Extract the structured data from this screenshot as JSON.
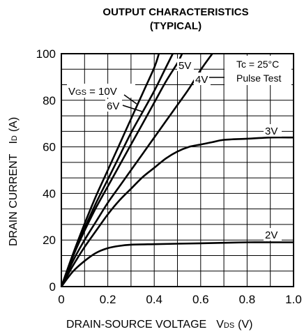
{
  "chart_data": {
    "type": "line",
    "title": "OUTPUT CHARACTERISTICS",
    "subtitle": "(TYPICAL)",
    "xlabel": "DRAIN-SOURCE VOLTAGE",
    "xlabel_symbol": "V",
    "xlabel_sub": "DS",
    "xlabel_unit": "(V)",
    "ylabel": "DRAIN CURRENT",
    "ylabel_symbol": "I",
    "ylabel_sub": "D",
    "ylabel_unit": "(A)",
    "xlim": [
      0,
      1.0
    ],
    "ylim": [
      0,
      100
    ],
    "x_ticks": [
      "0",
      "0.2",
      "0.4",
      "0.6",
      "0.8",
      "1.0"
    ],
    "y_ticks": [
      "0",
      "20",
      "40",
      "60",
      "80",
      "100"
    ],
    "grid": true,
    "annotations": {
      "condition_temp": "Tc = 25°C",
      "condition_test": "Pulse Test",
      "vgs_prefix": "V",
      "vgs_sub": "GS",
      "vgs_value": " = 10V"
    },
    "series": [
      {
        "name": "10V",
        "label": "V GS = 10V",
        "x": [
          0,
          0.05,
          0.1,
          0.15,
          0.2,
          0.25,
          0.3,
          0.35,
          0.4,
          0.42
        ],
        "y": [
          0,
          14,
          27,
          39,
          50,
          61,
          72,
          83,
          94,
          100
        ]
      },
      {
        "name": "6V",
        "label": "6V",
        "x": [
          0,
          0.05,
          0.1,
          0.15,
          0.2,
          0.25,
          0.3,
          0.35,
          0.4,
          0.45,
          0.48
        ],
        "y": [
          0,
          13,
          25,
          36,
          46,
          56,
          66,
          75,
          84,
          94,
          100
        ]
      },
      {
        "name": "5V",
        "label": "5V",
        "x": [
          0,
          0.05,
          0.1,
          0.15,
          0.2,
          0.25,
          0.3,
          0.35,
          0.4,
          0.45,
          0.5,
          0.52
        ],
        "y": [
          0,
          13,
          24,
          34,
          43,
          52,
          61,
          70,
          79,
          88,
          96,
          100
        ]
      },
      {
        "name": "4V",
        "label": "4V",
        "x": [
          0,
          0.05,
          0.1,
          0.15,
          0.2,
          0.25,
          0.3,
          0.35,
          0.4,
          0.45,
          0.5,
          0.55,
          0.6,
          0.65
        ],
        "y": [
          0,
          11,
          20,
          28,
          36,
          43,
          50,
          57,
          64,
          71,
          78,
          85,
          93,
          100
        ]
      },
      {
        "name": "3V",
        "label": "3V",
        "x": [
          0,
          0.05,
          0.1,
          0.15,
          0.2,
          0.25,
          0.3,
          0.35,
          0.4,
          0.45,
          0.5,
          0.55,
          0.6,
          0.65,
          0.7,
          0.8,
          0.9,
          1.0
        ],
        "y": [
          0,
          9,
          17,
          24,
          31,
          37,
          42,
          47,
          51,
          55,
          58,
          60,
          61,
          62,
          63,
          63.5,
          64,
          64
        ]
      },
      {
        "name": "2V",
        "label": "2V",
        "x": [
          0,
          0.05,
          0.1,
          0.15,
          0.2,
          0.25,
          0.3,
          0.4,
          0.5,
          0.6,
          0.7,
          0.8,
          0.9,
          1.0
        ],
        "y": [
          0,
          6.5,
          11,
          14.5,
          16.5,
          17.5,
          18,
          18.2,
          18.4,
          18.6,
          18.8,
          19,
          19,
          19
        ]
      }
    ]
  }
}
